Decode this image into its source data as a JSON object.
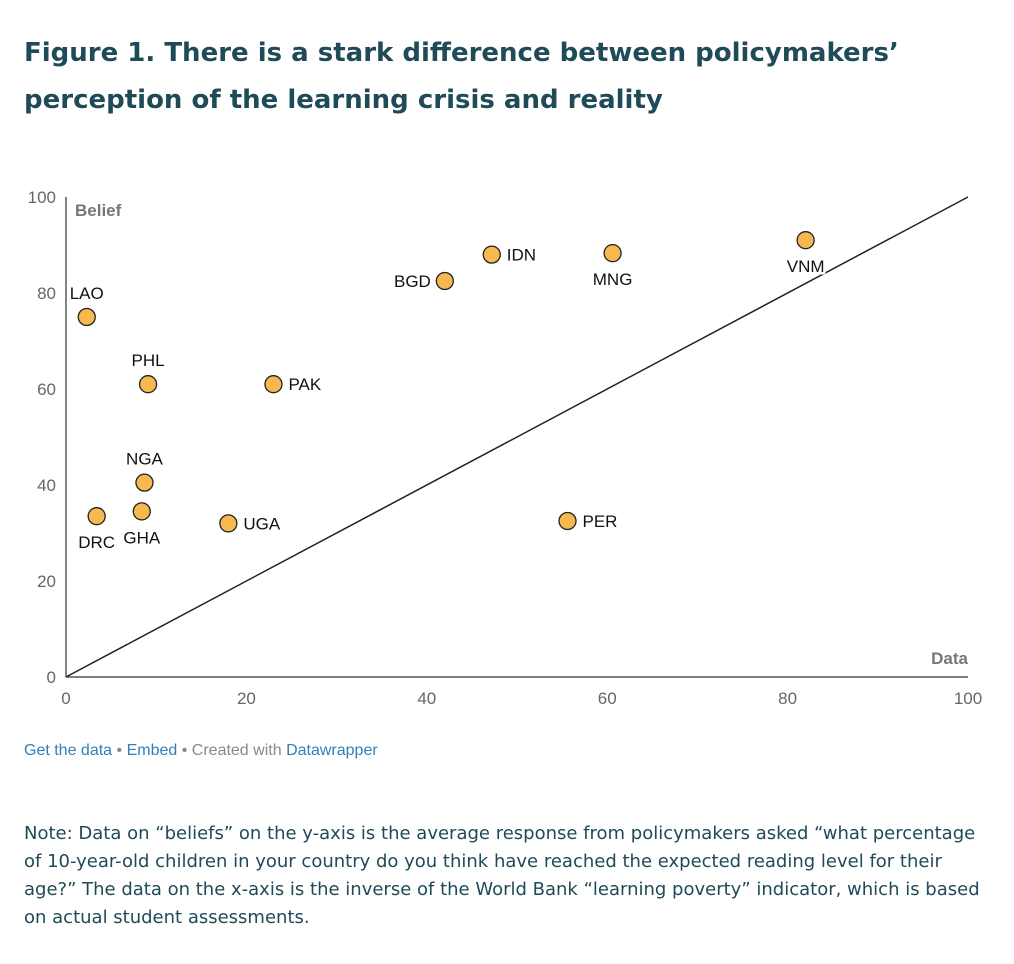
{
  "title": "Figure 1. There is a stark difference between policymakers’ perception of the learning crisis and reality",
  "chart_data": {
    "type": "scatter",
    "xlabel": "Data",
    "ylabel": "Belief",
    "xlim": [
      0,
      100
    ],
    "ylim": [
      0,
      100
    ],
    "xticks": [
      0,
      20,
      40,
      60,
      80,
      100
    ],
    "yticks": [
      0,
      20,
      40,
      60,
      80,
      100
    ],
    "grid": false,
    "reference_line": {
      "from": [
        0,
        0
      ],
      "to": [
        100,
        100
      ]
    },
    "marker_color": "#f7b84f",
    "points": [
      {
        "label": "LAO",
        "x": 2.3,
        "y": 75,
        "label_pos": "above"
      },
      {
        "label": "PHL",
        "x": 9.1,
        "y": 61,
        "label_pos": "above"
      },
      {
        "label": "PAK",
        "x": 23,
        "y": 61,
        "label_pos": "right"
      },
      {
        "label": "NGA",
        "x": 8.7,
        "y": 40.5,
        "label_pos": "above"
      },
      {
        "label": "DRC",
        "x": 3.4,
        "y": 33.5,
        "label_pos": "below"
      },
      {
        "label": "GHA",
        "x": 8.4,
        "y": 34.5,
        "label_pos": "below"
      },
      {
        "label": "UGA",
        "x": 18,
        "y": 32,
        "label_pos": "right"
      },
      {
        "label": "BGD",
        "x": 42,
        "y": 82.5,
        "label_pos": "left"
      },
      {
        "label": "IDN",
        "x": 47.2,
        "y": 88,
        "label_pos": "right"
      },
      {
        "label": "MNG",
        "x": 60.6,
        "y": 88.3,
        "label_pos": "below"
      },
      {
        "label": "VNM",
        "x": 82,
        "y": 91,
        "label_pos": "below"
      },
      {
        "label": "PER",
        "x": 55.6,
        "y": 32.5,
        "label_pos": "right"
      }
    ]
  },
  "footer": {
    "get_data": "Get the data",
    "separator": "•",
    "embed": "Embed",
    "created_with": "• Created with",
    "datawrapper": "Datawrapper"
  },
  "note": "Note: Data on “beliefs” on the y-axis is the average response from policymakers asked “what percentage of 10-year-old children in your country do you think have reached the expected reading level for their age?” The data on the x-axis is the inverse of the World Bank “learning poverty” indicator, which is based on actual student assessments."
}
